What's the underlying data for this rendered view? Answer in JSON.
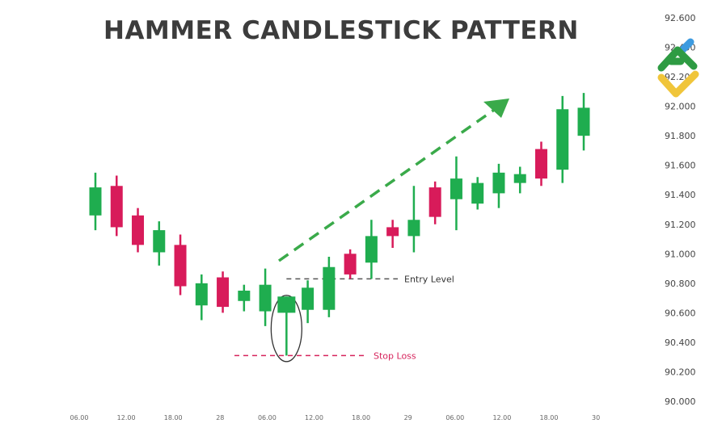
{
  "chart_data": {
    "type": "candlestick",
    "title": "HAMMER CANDLESTICK PATTERN",
    "ylim": [
      90.0,
      92.6
    ],
    "y_ticks": [
      "90.000",
      "90.200",
      "90.400",
      "90.600",
      "90.800",
      "91.000",
      "91.200",
      "91.400",
      "91.600",
      "91.800",
      "92.000",
      "92.200",
      "92.400",
      "92.600"
    ],
    "x_ticks": [
      "06.00",
      "12.00",
      "18.00",
      "28",
      "06.00",
      "12.00",
      "18.00",
      "29",
      "06.00",
      "12.00",
      "18.00",
      "30"
    ],
    "y_axis_position": "right",
    "grid": false,
    "colors": {
      "bullish": "#1fad4f",
      "bearish": "#d81b5a",
      "entry": "#555555",
      "stop": "#d6245c",
      "arrow": "#3aaa4a"
    },
    "candles": [
      {
        "o": 91.26,
        "h": 91.55,
        "l": 91.16,
        "c": 91.45
      },
      {
        "o": 91.46,
        "h": 91.53,
        "l": 91.12,
        "c": 91.18
      },
      {
        "o": 91.26,
        "h": 91.31,
        "l": 91.01,
        "c": 91.06
      },
      {
        "o": 91.01,
        "h": 91.22,
        "l": 90.92,
        "c": 91.16
      },
      {
        "o": 91.06,
        "h": 91.13,
        "l": 90.72,
        "c": 90.78
      },
      {
        "o": 90.65,
        "h": 90.86,
        "l": 90.55,
        "c": 90.8
      },
      {
        "o": 90.84,
        "h": 90.88,
        "l": 90.6,
        "c": 90.64
      },
      {
        "o": 90.68,
        "h": 90.79,
        "l": 90.61,
        "c": 90.75
      },
      {
        "o": 90.61,
        "h": 90.9,
        "l": 90.51,
        "c": 90.79
      },
      {
        "o": 90.6,
        "h": 90.71,
        "l": 90.31,
        "c": 90.71,
        "hammer": true
      },
      {
        "o": 90.62,
        "h": 90.82,
        "l": 90.53,
        "c": 90.77
      },
      {
        "o": 90.62,
        "h": 90.98,
        "l": 90.57,
        "c": 90.91
      },
      {
        "o": 91.0,
        "h": 91.03,
        "l": 90.83,
        "c": 90.86
      },
      {
        "o": 90.94,
        "h": 91.23,
        "l": 90.83,
        "c": 91.12
      },
      {
        "o": 91.18,
        "h": 91.23,
        "l": 91.04,
        "c": 91.12
      },
      {
        "o": 91.12,
        "h": 91.46,
        "l": 91.01,
        "c": 91.23
      },
      {
        "o": 91.45,
        "h": 91.49,
        "l": 91.2,
        "c": 91.25
      },
      {
        "o": 91.37,
        "h": 91.66,
        "l": 91.16,
        "c": 91.51
      },
      {
        "o": 91.34,
        "h": 91.52,
        "l": 91.3,
        "c": 91.48
      },
      {
        "o": 91.41,
        "h": 91.61,
        "l": 91.31,
        "c": 91.55
      },
      {
        "o": 91.48,
        "h": 91.59,
        "l": 91.41,
        "c": 91.54
      },
      {
        "o": 91.71,
        "h": 91.76,
        "l": 91.46,
        "c": 91.51
      },
      {
        "o": 91.57,
        "h": 92.07,
        "l": 91.48,
        "c": 91.98
      },
      {
        "o": 91.8,
        "h": 92.09,
        "l": 91.7,
        "c": 91.99
      }
    ],
    "annotations": {
      "entry_label": "Entry Level",
      "entry_value": 90.83,
      "stop_label": "Stop Loss",
      "stop_value": 90.31
    }
  }
}
